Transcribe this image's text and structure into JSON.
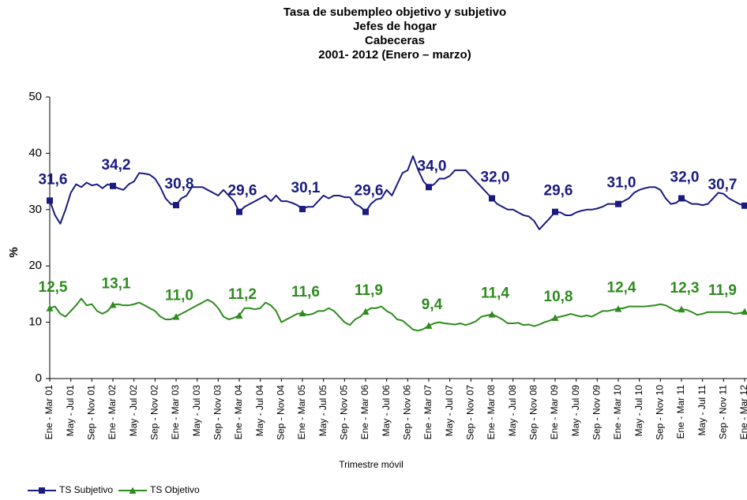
{
  "chart_data": {
    "type": "line",
    "title": [
      "Tasa de subempleo objetivo y subjetivo",
      "Jefes de hogar",
      "Cabeceras",
      "2001- 2012 (Enero – marzo)"
    ],
    "x_label": "Trimestre móvil",
    "y_label": "%",
    "categories": [
      "Ene - Mar 01",
      null,
      null,
      null,
      "May - Jul 01",
      null,
      null,
      null,
      "Sep - Nov 01",
      null,
      null,
      null,
      "Ene - Mar 02",
      null,
      null,
      null,
      "May - Jul 02",
      null,
      null,
      null,
      "Sep - Nov 02",
      null,
      null,
      null,
      "Ene - Mar 03",
      null,
      null,
      null,
      "May - Jul 03",
      null,
      null,
      null,
      "Sep - Nov 03",
      null,
      null,
      null,
      "Ene - Mar 04",
      null,
      null,
      null,
      "May - Jul 04",
      null,
      null,
      null,
      "Sep - Nov 04",
      null,
      null,
      null,
      "Ene - Mar 05",
      null,
      null,
      null,
      "May - Jul 05",
      null,
      null,
      null,
      "Sep - Nov 05",
      null,
      null,
      null,
      "Ene - Mar 06",
      null,
      null,
      null,
      "May - Jul 06",
      null,
      null,
      null,
      "Sep - Nov 06",
      null,
      null,
      null,
      "Ene - Mar 07",
      null,
      null,
      null,
      "May - Jul 07",
      null,
      null,
      null,
      "Sep - Nov 07",
      null,
      null,
      null,
      "Ene - Mar 08",
      null,
      null,
      null,
      "May - Jul 08",
      null,
      null,
      null,
      "Sep - Nov 08",
      null,
      null,
      null,
      "Ene - Mar 09",
      null,
      null,
      null,
      "May - Jul 09",
      null,
      null,
      null,
      "Sep - Nov 09",
      null,
      null,
      null,
      "Ene - Mar 10",
      null,
      null,
      null,
      "May - Jul 10",
      null,
      null,
      null,
      "Sep - Nov 10",
      null,
      null,
      null,
      "Ene - Mar 11",
      null,
      null,
      null,
      "May - Jul 11",
      null,
      null,
      null,
      "Sep - Nov 11",
      null,
      null,
      null,
      "Ene - Mar 12"
    ],
    "series": [
      {
        "name": "TS Subjetivo",
        "color": "#1a1a80",
        "marker": "square",
        "values": [
          31.6,
          29,
          27.5,
          30,
          33,
          34.5,
          34,
          34.8,
          34.3,
          34.5,
          33.8,
          34.5,
          34.2,
          33.8,
          33.5,
          34.5,
          35,
          36.5,
          36.4,
          36.2,
          35.5,
          34,
          32,
          31,
          30.8,
          32,
          32.5,
          34,
          34,
          34,
          33.5,
          33,
          32.5,
          33.5,
          32.5,
          31.5,
          29.6,
          30.5,
          31,
          31.5,
          32,
          32.5,
          31.5,
          32.5,
          31.5,
          31.5,
          31.2,
          30.8,
          30.1,
          30.5,
          30.5,
          31.5,
          32.5,
          32,
          32.5,
          32.5,
          32.2,
          32.2,
          31,
          30.5,
          29.6,
          31,
          31.8,
          32,
          33.5,
          32.5,
          34.5,
          36.5,
          37,
          39.5,
          37,
          35,
          34.0,
          34.5,
          35.5,
          35.5,
          36,
          37,
          37,
          37,
          36,
          35,
          34,
          33,
          32.0,
          31,
          30.5,
          30,
          30,
          29.5,
          29,
          28.8,
          28,
          26.5,
          27.5,
          28.5,
          29.6,
          29.5,
          29,
          29,
          29.5,
          29.8,
          30,
          30,
          30.2,
          30.5,
          31,
          31,
          31.0,
          31.5,
          32,
          33,
          33.5,
          33.8,
          34,
          34,
          33.5,
          32,
          31,
          31.2,
          32.0,
          31.5,
          31,
          31,
          30.8,
          31,
          32,
          33,
          32.8,
          32,
          31.5,
          31,
          30.7
        ],
        "value_labels": [
          "31,6",
          null,
          null,
          null,
          null,
          null,
          null,
          null,
          null,
          null,
          null,
          null,
          "34,2",
          null,
          null,
          null,
          null,
          null,
          null,
          null,
          null,
          null,
          null,
          null,
          "30,8",
          null,
          null,
          null,
          null,
          null,
          null,
          null,
          null,
          null,
          null,
          null,
          "29,6",
          null,
          null,
          null,
          null,
          null,
          null,
          null,
          null,
          null,
          null,
          null,
          "30,1",
          null,
          null,
          null,
          null,
          null,
          null,
          null,
          null,
          null,
          null,
          null,
          "29,6",
          null,
          null,
          null,
          null,
          null,
          null,
          null,
          null,
          null,
          null,
          null,
          "34,0",
          null,
          null,
          null,
          null,
          null,
          null,
          null,
          null,
          null,
          null,
          null,
          "32,0",
          null,
          null,
          null,
          null,
          null,
          null,
          null,
          null,
          null,
          null,
          null,
          "29,6",
          null,
          null,
          null,
          null,
          null,
          null,
          null,
          null,
          null,
          null,
          null,
          "31,0",
          null,
          null,
          null,
          null,
          null,
          null,
          null,
          null,
          null,
          null,
          null,
          "32,0",
          null,
          null,
          null,
          null,
          null,
          null,
          null,
          null,
          null,
          null,
          null,
          "30,7"
        ]
      },
      {
        "name": "TS Objetivo",
        "color": "#2e8b1e",
        "marker": "triangle",
        "values": [
          12.5,
          12.8,
          11.5,
          11,
          12,
          13,
          14.2,
          13,
          13.2,
          12,
          11.5,
          12,
          13.1,
          13.2,
          13,
          13,
          13.2,
          13.5,
          13,
          12.5,
          12,
          11,
          10.5,
          10.5,
          11.0,
          11.5,
          12,
          12.5,
          13,
          13.5,
          14,
          13.5,
          12.5,
          11,
          10.5,
          10.8,
          11.2,
          12.5,
          12.5,
          12.3,
          12.5,
          13.5,
          13,
          12,
          10,
          10.5,
          11,
          11.5,
          11.6,
          11.3,
          11.5,
          12,
          12,
          12.5,
          12,
          11,
          10,
          9.5,
          10.5,
          11,
          11.9,
          12.5,
          12.5,
          12.8,
          12,
          11.5,
          10.5,
          10.3,
          9.5,
          8.7,
          8.5,
          8.8,
          9.4,
          9.8,
          10,
          9.8,
          9.7,
          9.6,
          9.8,
          9.5,
          9.8,
          10.2,
          11,
          11.2,
          11.4,
          11,
          10.5,
          9.8,
          9.8,
          9.9,
          9.5,
          9.6,
          9.3,
          9.6,
          10,
          10.3,
          10.8,
          11,
          11.2,
          11.5,
          11.2,
          11,
          11.2,
          11,
          11.5,
          12,
          12,
          12.2,
          12.4,
          12.5,
          12.8,
          12.8,
          12.8,
          12.8,
          12.9,
          13,
          13.2,
          13,
          12.5,
          12,
          12.3,
          12.2,
          11.8,
          11.3,
          11.5,
          11.8,
          11.8,
          11.8,
          11.8,
          11.8,
          11.5,
          11.6,
          11.9
        ],
        "value_labels": [
          "12,5",
          null,
          null,
          null,
          null,
          null,
          null,
          null,
          null,
          null,
          null,
          null,
          "13,1",
          null,
          null,
          null,
          null,
          null,
          null,
          null,
          null,
          null,
          null,
          null,
          "11,0",
          null,
          null,
          null,
          null,
          null,
          null,
          null,
          null,
          null,
          null,
          null,
          "11,2",
          null,
          null,
          null,
          null,
          null,
          null,
          null,
          null,
          null,
          null,
          null,
          "11,6",
          null,
          null,
          null,
          null,
          null,
          null,
          null,
          null,
          null,
          null,
          null,
          "11,9",
          null,
          null,
          null,
          null,
          null,
          null,
          null,
          null,
          null,
          null,
          null,
          "9,4",
          null,
          null,
          null,
          null,
          null,
          null,
          null,
          null,
          null,
          null,
          null,
          "11,4",
          null,
          null,
          null,
          null,
          null,
          null,
          null,
          null,
          null,
          null,
          null,
          "10,8",
          null,
          null,
          null,
          null,
          null,
          null,
          null,
          null,
          null,
          null,
          null,
          "12,4",
          null,
          null,
          null,
          null,
          null,
          null,
          null,
          null,
          null,
          null,
          null,
          "12,3",
          null,
          null,
          null,
          null,
          null,
          null,
          null,
          null,
          null,
          null,
          null,
          "11,9"
        ]
      }
    ],
    "ylim": [
      0,
      50
    ],
    "yticks": [
      0,
      10,
      20,
      30,
      40,
      50
    ],
    "grid": false,
    "legend": "bottom-left"
  }
}
